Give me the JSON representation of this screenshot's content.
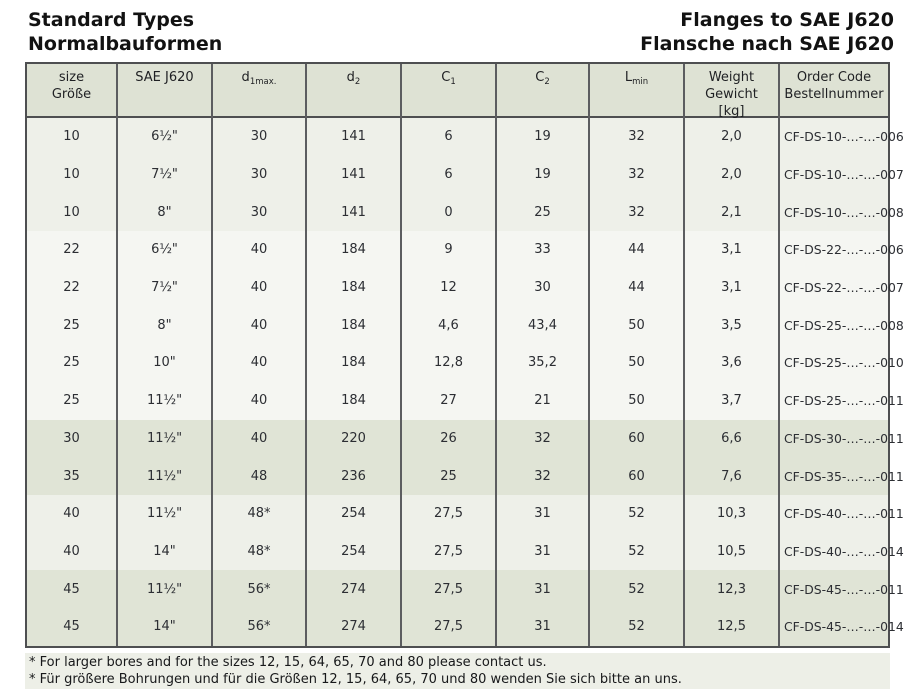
{
  "titles": {
    "left1": "Standard Types",
    "left2": "Normalbauformen",
    "right1": "Flanges to SAE J620",
    "right2": "Flansche nach SAE J620"
  },
  "colors": {
    "header_bg": "#dee2d4",
    "note_bg": "#edefe7",
    "border_dark": "#4e4f51",
    "grid_line": "#5c5d60",
    "shades": {
      "a": "#eef0e9",
      "b": "#f5f6f2",
      "c": "#e0e4d6"
    }
  },
  "table": {
    "headers": [
      {
        "line1": "size",
        "line2": "Größe"
      },
      {
        "line1": "SAE J620",
        "line2": ""
      },
      {
        "base": "d",
        "sub": "1max."
      },
      {
        "base": "d",
        "sub": "2"
      },
      {
        "base": "C",
        "sub": "1"
      },
      {
        "base": "C",
        "sub": "2"
      },
      {
        "base": "L",
        "sub": "min"
      },
      {
        "line1": "Weight",
        "line2": "Gewicht",
        "line3": "[kg]"
      },
      {
        "line1": "Order Code",
        "line2": "Bestellnummer"
      }
    ],
    "rows": [
      {
        "size": "10",
        "sae": "6½\"",
        "d1": "30",
        "d2": "141",
        "c1": "6",
        "c2": "19",
        "lmin": "32",
        "weight": "2,0",
        "code": "CF-DS-10-…-…-006",
        "shade": "a"
      },
      {
        "size": "10",
        "sae": "7½\"",
        "d1": "30",
        "d2": "141",
        "c1": "6",
        "c2": "19",
        "lmin": "32",
        "weight": "2,0",
        "code": "CF-DS-10-…-…-007",
        "shade": "a"
      },
      {
        "size": "10",
        "sae": "8\"",
        "d1": "30",
        "d2": "141",
        "c1": "0",
        "c2": "25",
        "lmin": "32",
        "weight": "2,1",
        "code": "CF-DS-10-…-…-008",
        "shade": "a"
      },
      {
        "size": "22",
        "sae": "6½\"",
        "d1": "40",
        "d2": "184",
        "c1": "9",
        "c2": "33",
        "lmin": "44",
        "weight": "3,1",
        "code": "CF-DS-22-…-…-006",
        "shade": "b"
      },
      {
        "size": "22",
        "sae": "7½\"",
        "d1": "40",
        "d2": "184",
        "c1": "12",
        "c2": "30",
        "lmin": "44",
        "weight": "3,1",
        "code": "CF-DS-22-…-…-007",
        "shade": "b"
      },
      {
        "size": "25",
        "sae": "8\"",
        "d1": "40",
        "d2": "184",
        "c1": "4,6",
        "c2": "43,4",
        "lmin": "50",
        "weight": "3,5",
        "code": "CF-DS-25-…-…-008",
        "shade": "b"
      },
      {
        "size": "25",
        "sae": "10\"",
        "d1": "40",
        "d2": "184",
        "c1": "12,8",
        "c2": "35,2",
        "lmin": "50",
        "weight": "3,6",
        "code": "CF-DS-25-…-…-010",
        "shade": "b"
      },
      {
        "size": "25",
        "sae": "11½\"",
        "d1": "40",
        "d2": "184",
        "c1": "27",
        "c2": "21",
        "lmin": "50",
        "weight": "3,7",
        "code": "CF-DS-25-…-…-011",
        "shade": "b"
      },
      {
        "size": "30",
        "sae": "11½\"",
        "d1": "40",
        "d2": "220",
        "c1": "26",
        "c2": "32",
        "lmin": "60",
        "weight": "6,6",
        "code": "CF-DS-30-…-…-011",
        "shade": "c"
      },
      {
        "size": "35",
        "sae": "11½\"",
        "d1": "48",
        "d2": "236",
        "c1": "25",
        "c2": "32",
        "lmin": "60",
        "weight": "7,6",
        "code": "CF-DS-35-…-…-011",
        "shade": "c"
      },
      {
        "size": "40",
        "sae": "11½\"",
        "d1": "48*",
        "d2": "254",
        "c1": "27,5",
        "c2": "31",
        "lmin": "52",
        "weight": "10,3",
        "code": "CF-DS-40-…-…-011",
        "shade": "a"
      },
      {
        "size": "40",
        "sae": "14\"",
        "d1": "48*",
        "d2": "254",
        "c1": "27,5",
        "c2": "31",
        "lmin": "52",
        "weight": "10,5",
        "code": "CF-DS-40-…-…-014",
        "shade": "a"
      },
      {
        "size": "45",
        "sae": "11½\"",
        "d1": "56*",
        "d2": "274",
        "c1": "27,5",
        "c2": "31",
        "lmin": "52",
        "weight": "12,3",
        "code": "CF-DS-45-…-…-011",
        "shade": "c"
      },
      {
        "size": "45",
        "sae": "14\"",
        "d1": "56*",
        "d2": "274",
        "c1": "27,5",
        "c2": "31",
        "lmin": "52",
        "weight": "12,5",
        "code": "CF-DS-45-…-…-014",
        "shade": "c"
      }
    ]
  },
  "notes": {
    "line1": "* For larger bores and for the sizes 12, 15, 64, 65, 70 and 80 please contact us.",
    "line2": "* Für größere Bohrungen und für die Größen 12, 15, 64, 65, 70 und 80 wenden Sie sich bitte an uns."
  }
}
